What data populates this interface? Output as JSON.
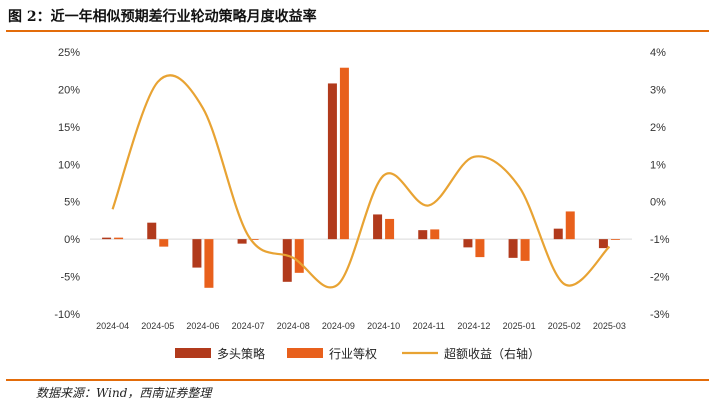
{
  "title": "图 2：近一年相似预期差行业轮动策略月度收益率",
  "source": "数据来源：Wind，西南证券整理",
  "colors": {
    "strategy": "#b13a1c",
    "industry": "#e8601c",
    "excess": "#e8a333",
    "rule": "#e36c0a"
  },
  "chart_data": {
    "type": "bar+line",
    "categories": [
      "2024-04",
      "2024-05",
      "2024-06",
      "2024-07",
      "2024-08",
      "2024-09",
      "2024-10",
      "2024-11",
      "2024-12",
      "2025-01",
      "2025-02",
      "2025-03"
    ],
    "series": [
      {
        "name": "多头策略",
        "axis": "left",
        "kind": "bar",
        "values": [
          0.2,
          2.2,
          -3.8,
          -0.6,
          -5.7,
          20.8,
          3.3,
          1.2,
          -1.1,
          -2.5,
          1.4,
          -1.2
        ]
      },
      {
        "name": "行业等权",
        "axis": "left",
        "kind": "bar",
        "values": [
          0.2,
          -1.0,
          -6.5,
          0.0,
          -4.5,
          22.9,
          2.7,
          1.3,
          -2.4,
          -2.9,
          3.7,
          -0.1
        ]
      },
      {
        "name": "超额收益（右轴）",
        "axis": "right",
        "kind": "line",
        "values": [
          -0.2,
          3.2,
          2.5,
          -0.9,
          -1.5,
          -2.2,
          0.7,
          -0.1,
          1.2,
          0.4,
          -2.2,
          -1.2
        ]
      }
    ],
    "ylim_left": [
      -10,
      25
    ],
    "yticks_left": [
      "25%",
      "20%",
      "15%",
      "10%",
      "5%",
      "0%",
      "-5%",
      "-10%"
    ],
    "ylim_right": [
      -3,
      4
    ],
    "yticks_right": [
      "4%",
      "3%",
      "2%",
      "1%",
      "0%",
      "-1%",
      "-2%",
      "-3%"
    ],
    "legend_position": "bottom-center"
  }
}
